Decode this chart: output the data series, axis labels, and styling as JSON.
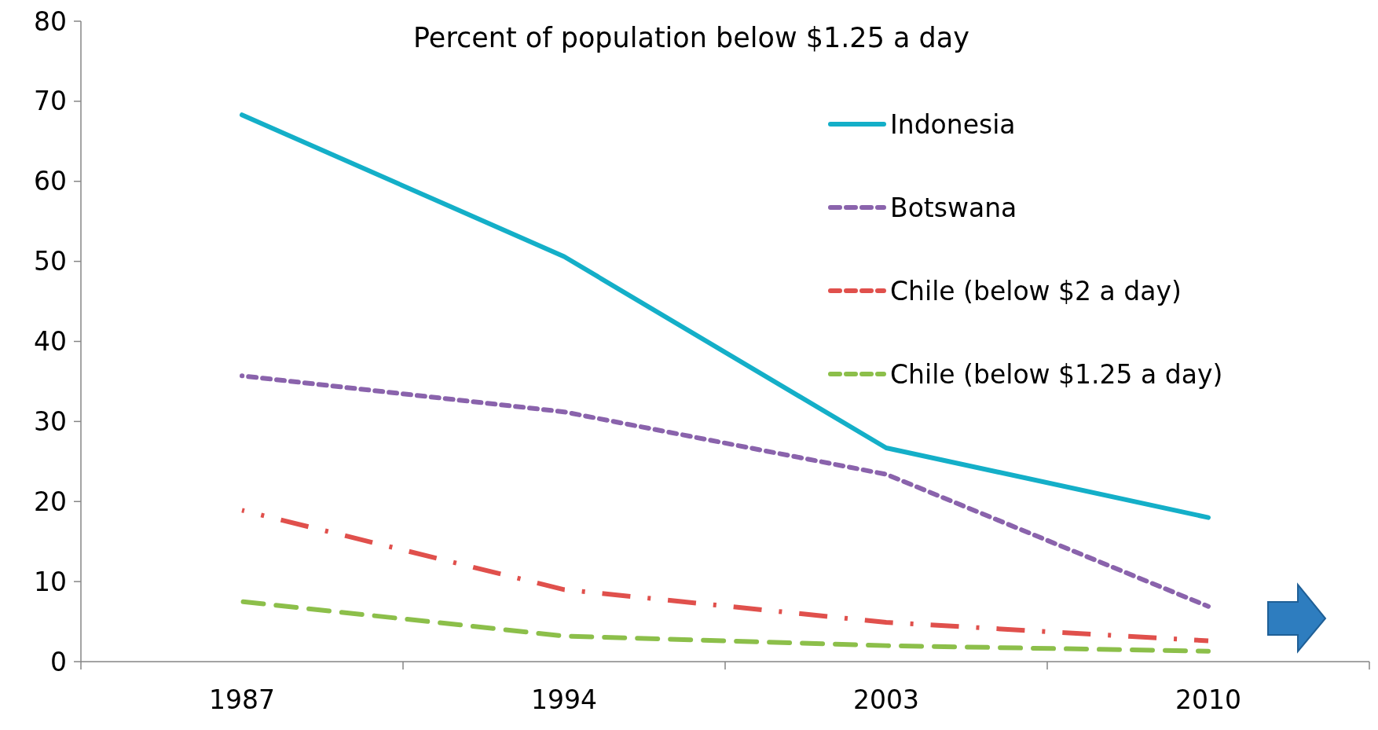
{
  "chart_data": {
    "type": "line",
    "title": "Percent of population below $1.25 a day",
    "categories": [
      "1987",
      "1994",
      "2003",
      "2010"
    ],
    "series": [
      {
        "name": "Indonesia",
        "color": "#14afc8",
        "line_style": "solid",
        "values": [
          68.3,
          50.6,
          26.7,
          18.0
        ]
      },
      {
        "name": "Botswana",
        "color": "#8a63ac",
        "line_style": "dotted",
        "values": [
          35.7,
          31.2,
          23.4,
          6.9
        ]
      },
      {
        "name": "Chile (below $2 a day)",
        "color": "#e0504c",
        "line_style": "dashdot",
        "values": [
          18.9,
          9.0,
          4.9,
          2.6
        ]
      },
      {
        "name": "Chile (below $1.25 a day)",
        "color": "#8cbf4a",
        "line_style": "dashed",
        "values": [
          7.5,
          3.2,
          2.0,
          1.3
        ]
      }
    ],
    "ylim": [
      0,
      80
    ],
    "yticks": [
      0,
      10,
      20,
      30,
      40,
      50,
      60,
      70,
      80
    ],
    "grid": false,
    "legend": "top right",
    "marker": "none"
  }
}
